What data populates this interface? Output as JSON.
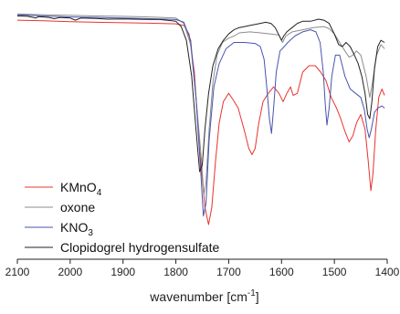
{
  "chart_data": {
    "type": "line",
    "title": "",
    "xlabel": "wavenumber [cm",
    "xlabel_sup": "-1",
    "xlabel_end": "]",
    "ylabel": "",
    "xlim": [
      2100,
      1400
    ],
    "x_reversed": true,
    "y_axis_shown": false,
    "grid": false,
    "legend_placement": "bottom-left",
    "x_ticks": [
      2100,
      2000,
      1900,
      1800,
      1700,
      1600,
      1500,
      1400
    ],
    "series": [
      {
        "name": "KMnO",
        "name_sub": "4",
        "color": "#e8342e",
        "points": [
          [
            2100,
            0.965
          ],
          [
            2050,
            0.962
          ],
          [
            2000,
            0.958
          ],
          [
            1950,
            0.955
          ],
          [
            1900,
            0.953
          ],
          [
            1850,
            0.951
          ],
          [
            1800,
            0.948
          ],
          [
            1785,
            0.94
          ],
          [
            1775,
            0.9
          ],
          [
            1765,
            0.72
          ],
          [
            1755,
            0.35
          ],
          [
            1745,
            0.08
          ],
          [
            1738,
            0.0
          ],
          [
            1732,
            0.08
          ],
          [
            1725,
            0.3
          ],
          [
            1718,
            0.48
          ],
          [
            1710,
            0.58
          ],
          [
            1700,
            0.62
          ],
          [
            1692,
            0.59
          ],
          [
            1682,
            0.55
          ],
          [
            1670,
            0.44
          ],
          [
            1662,
            0.36
          ],
          [
            1656,
            0.33
          ],
          [
            1650,
            0.36
          ],
          [
            1643,
            0.48
          ],
          [
            1635,
            0.58
          ],
          [
            1625,
            0.62
          ],
          [
            1615,
            0.65
          ],
          [
            1605,
            0.62
          ],
          [
            1597,
            0.58
          ],
          [
            1590,
            0.62
          ],
          [
            1583,
            0.65
          ],
          [
            1578,
            0.61
          ],
          [
            1570,
            0.62
          ],
          [
            1560,
            0.72
          ],
          [
            1548,
            0.75
          ],
          [
            1536,
            0.75
          ],
          [
            1526,
            0.72
          ],
          [
            1516,
            0.68
          ],
          [
            1506,
            0.6
          ],
          [
            1496,
            0.55
          ],
          [
            1488,
            0.5
          ],
          [
            1480,
            0.44
          ],
          [
            1472,
            0.39
          ],
          [
            1465,
            0.42
          ],
          [
            1458,
            0.48
          ],
          [
            1450,
            0.52
          ],
          [
            1442,
            0.45
          ],
          [
            1436,
            0.3
          ],
          [
            1431,
            0.16
          ],
          [
            1427,
            0.24
          ],
          [
            1422,
            0.44
          ],
          [
            1416,
            0.6
          ],
          [
            1410,
            0.64
          ],
          [
            1405,
            0.61
          ]
        ]
      },
      {
        "name": "oxone",
        "color": "#8c8c8c",
        "points": [
          [
            2100,
            0.995
          ],
          [
            2050,
            0.99
          ],
          [
            2000,
            0.988
          ],
          [
            1950,
            0.985
          ],
          [
            1900,
            0.983
          ],
          [
            1850,
            0.98
          ],
          [
            1800,
            0.975
          ],
          [
            1785,
            0.95
          ],
          [
            1772,
            0.85
          ],
          [
            1762,
            0.6
          ],
          [
            1752,
            0.32
          ],
          [
            1747,
            0.14
          ],
          [
            1743,
            0.2
          ],
          [
            1737,
            0.45
          ],
          [
            1730,
            0.67
          ],
          [
            1722,
            0.8
          ],
          [
            1712,
            0.86
          ],
          [
            1700,
            0.88
          ],
          [
            1690,
            0.89
          ],
          [
            1680,
            0.905
          ],
          [
            1660,
            0.91
          ],
          [
            1640,
            0.905
          ],
          [
            1620,
            0.9
          ],
          [
            1605,
            0.895
          ],
          [
            1598,
            0.86
          ],
          [
            1592,
            0.89
          ],
          [
            1580,
            0.91
          ],
          [
            1560,
            0.92
          ],
          [
            1540,
            0.93
          ],
          [
            1520,
            0.935
          ],
          [
            1510,
            0.925
          ],
          [
            1500,
            0.9
          ],
          [
            1490,
            0.86
          ],
          [
            1480,
            0.82
          ],
          [
            1472,
            0.79
          ],
          [
            1465,
            0.8
          ],
          [
            1458,
            0.82
          ],
          [
            1450,
            0.8
          ],
          [
            1440,
            0.7
          ],
          [
            1433,
            0.6
          ],
          [
            1428,
            0.67
          ],
          [
            1420,
            0.8
          ],
          [
            1412,
            0.85
          ],
          [
            1405,
            0.83
          ]
        ]
      },
      {
        "name": "KNO",
        "name_sub": "3",
        "color": "#4754ae",
        "points": [
          [
            2100,
            0.99
          ],
          [
            2050,
            0.985
          ],
          [
            2000,
            0.98
          ],
          [
            1950,
            0.978
          ],
          [
            1900,
            0.975
          ],
          [
            1850,
            0.972
          ],
          [
            1800,
            0.968
          ],
          [
            1785,
            0.955
          ],
          [
            1772,
            0.87
          ],
          [
            1762,
            0.6
          ],
          [
            1753,
            0.25
          ],
          [
            1748,
            0.04
          ],
          [
            1743,
            0.1
          ],
          [
            1737,
            0.4
          ],
          [
            1728,
            0.65
          ],
          [
            1718,
            0.76
          ],
          [
            1705,
            0.83
          ],
          [
            1690,
            0.86
          ],
          [
            1670,
            0.86
          ],
          [
            1650,
            0.855
          ],
          [
            1640,
            0.84
          ],
          [
            1633,
            0.78
          ],
          [
            1628,
            0.65
          ],
          [
            1623,
            0.5
          ],
          [
            1619,
            0.43
          ],
          [
            1615,
            0.55
          ],
          [
            1610,
            0.72
          ],
          [
            1603,
            0.82
          ],
          [
            1595,
            0.84
          ],
          [
            1588,
            0.86
          ],
          [
            1575,
            0.89
          ],
          [
            1560,
            0.91
          ],
          [
            1545,
            0.92
          ],
          [
            1535,
            0.91
          ],
          [
            1527,
            0.86
          ],
          [
            1521,
            0.72
          ],
          [
            1517,
            0.56
          ],
          [
            1514,
            0.47
          ],
          [
            1510,
            0.55
          ],
          [
            1505,
            0.7
          ],
          [
            1498,
            0.8
          ],
          [
            1490,
            0.8
          ],
          [
            1480,
            0.7
          ],
          [
            1470,
            0.64
          ],
          [
            1460,
            0.62
          ],
          [
            1450,
            0.6
          ],
          [
            1443,
            0.54
          ],
          [
            1438,
            0.45
          ],
          [
            1434,
            0.41
          ],
          [
            1430,
            0.45
          ],
          [
            1424,
            0.53
          ],
          [
            1418,
            0.55
          ],
          [
            1410,
            0.56
          ],
          [
            1405,
            0.55
          ]
        ]
      },
      {
        "name": "Clopidogrel hydrogensulfate",
        "color": "#222222",
        "points": [
          [
            2100,
            0.985
          ],
          [
            2080,
            0.983
          ],
          [
            2065,
            0.975
          ],
          [
            2060,
            0.982
          ],
          [
            2040,
            0.978
          ],
          [
            2030,
            0.972
          ],
          [
            2020,
            0.978
          ],
          [
            2000,
            0.975
          ],
          [
            1990,
            0.965
          ],
          [
            1980,
            0.975
          ],
          [
            1950,
            0.973
          ],
          [
            1930,
            0.97
          ],
          [
            1900,
            0.971
          ],
          [
            1860,
            0.969
          ],
          [
            1830,
            0.968
          ],
          [
            1800,
            0.96
          ],
          [
            1790,
            0.935
          ],
          [
            1780,
            0.87
          ],
          [
            1770,
            0.7
          ],
          [
            1762,
            0.45
          ],
          [
            1755,
            0.25
          ],
          [
            1750,
            0.28
          ],
          [
            1745,
            0.45
          ],
          [
            1738,
            0.62
          ],
          [
            1730,
            0.75
          ],
          [
            1720,
            0.83
          ],
          [
            1710,
            0.87
          ],
          [
            1700,
            0.9
          ],
          [
            1690,
            0.92
          ],
          [
            1680,
            0.93
          ],
          [
            1670,
            0.935
          ],
          [
            1660,
            0.94
          ],
          [
            1650,
            0.945
          ],
          [
            1640,
            0.95
          ],
          [
            1630,
            0.955
          ],
          [
            1620,
            0.95
          ],
          [
            1612,
            0.93
          ],
          [
            1606,
            0.9
          ],
          [
            1600,
            0.87
          ],
          [
            1596,
            0.89
          ],
          [
            1590,
            0.91
          ],
          [
            1580,
            0.93
          ],
          [
            1570,
            0.95
          ],
          [
            1560,
            0.96
          ],
          [
            1545,
            0.96
          ],
          [
            1530,
            0.97
          ],
          [
            1520,
            0.965
          ],
          [
            1510,
            0.95
          ],
          [
            1500,
            0.9
          ],
          [
            1492,
            0.85
          ],
          [
            1485,
            0.84
          ],
          [
            1478,
            0.86
          ],
          [
            1470,
            0.84
          ],
          [
            1462,
            0.8
          ],
          [
            1455,
            0.76
          ],
          [
            1448,
            0.7
          ],
          [
            1442,
            0.62
          ],
          [
            1437,
            0.52
          ],
          [
            1433,
            0.5
          ],
          [
            1429,
            0.58
          ],
          [
            1424,
            0.74
          ],
          [
            1418,
            0.84
          ],
          [
            1412,
            0.87
          ],
          [
            1405,
            0.86
          ]
        ]
      }
    ]
  }
}
